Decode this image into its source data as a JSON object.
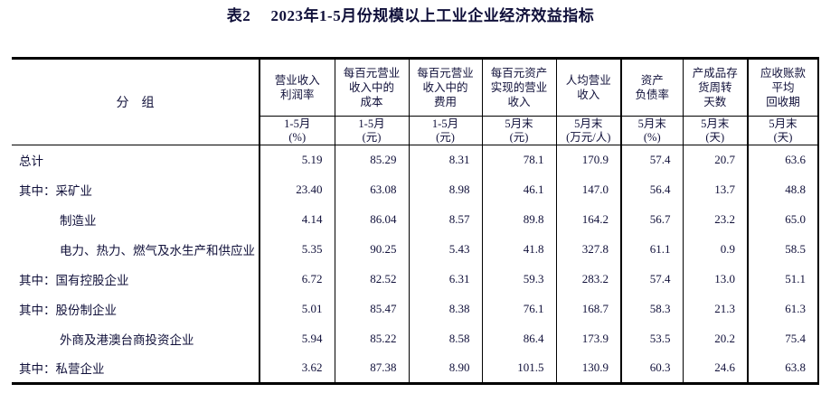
{
  "title": "表2　 2023年1-5月份规模以上工业企业经济效益指标",
  "colors": {
    "background": "#ffffff",
    "text": "#10103a",
    "border": "#000000"
  },
  "table": {
    "group_header": "分　组",
    "columns": [
      {
        "label": "营业收入\n利润率",
        "unit": "1-5月\n(%)"
      },
      {
        "label": "每百元营业\n收入中的\n成本",
        "unit": "1-5月\n(元)"
      },
      {
        "label": "每百元营业\n收入中的\n费用",
        "unit": "1-5月\n(元)"
      },
      {
        "label": "每百元资产\n实现的营业\n收入",
        "unit": "5月末\n(元)"
      },
      {
        "label": "人均营业\n收入",
        "unit": "5月末\n(万元/人)"
      },
      {
        "label": "资产\n负债率",
        "unit": "5月末\n(%)"
      },
      {
        "label": "产成品存\n货周转\n天数",
        "unit": "5月末\n(天)"
      },
      {
        "label": "应收账款\n平均\n回收期",
        "unit": "5月末\n(天)"
      }
    ],
    "rows": [
      {
        "label": "总计",
        "indent": false,
        "values": [
          "5.19",
          "85.29",
          "8.31",
          "78.1",
          "170.9",
          "57.4",
          "20.7",
          "63.6"
        ]
      },
      {
        "label": "其中：采矿业",
        "indent": false,
        "values": [
          "23.40",
          "63.08",
          "8.98",
          "46.1",
          "147.0",
          "56.4",
          "13.7",
          "48.8"
        ]
      },
      {
        "label": "制造业",
        "indent": true,
        "values": [
          "4.14",
          "86.04",
          "8.57",
          "89.8",
          "164.2",
          "56.7",
          "23.2",
          "65.0"
        ]
      },
      {
        "label": "电力、热力、燃气及水生产和供应业",
        "indent": true,
        "values": [
          "5.35",
          "90.25",
          "5.43",
          "41.8",
          "327.8",
          "61.1",
          "0.9",
          "58.5"
        ]
      },
      {
        "label": "其中：国有控股企业",
        "indent": false,
        "values": [
          "6.72",
          "82.52",
          "6.31",
          "59.3",
          "283.2",
          "57.4",
          "13.0",
          "51.1"
        ]
      },
      {
        "label": "其中：股份制企业",
        "indent": false,
        "values": [
          "5.01",
          "85.47",
          "8.38",
          "76.1",
          "168.7",
          "58.3",
          "21.3",
          "61.3"
        ]
      },
      {
        "label": "外商及港澳台商投资企业",
        "indent": true,
        "values": [
          "5.94",
          "85.22",
          "8.58",
          "86.4",
          "173.9",
          "53.5",
          "20.2",
          "75.4"
        ]
      },
      {
        "label": "其中：私营企业",
        "indent": false,
        "values": [
          "3.62",
          "87.38",
          "8.90",
          "101.5",
          "130.9",
          "60.3",
          "24.6",
          "63.8"
        ]
      }
    ]
  }
}
